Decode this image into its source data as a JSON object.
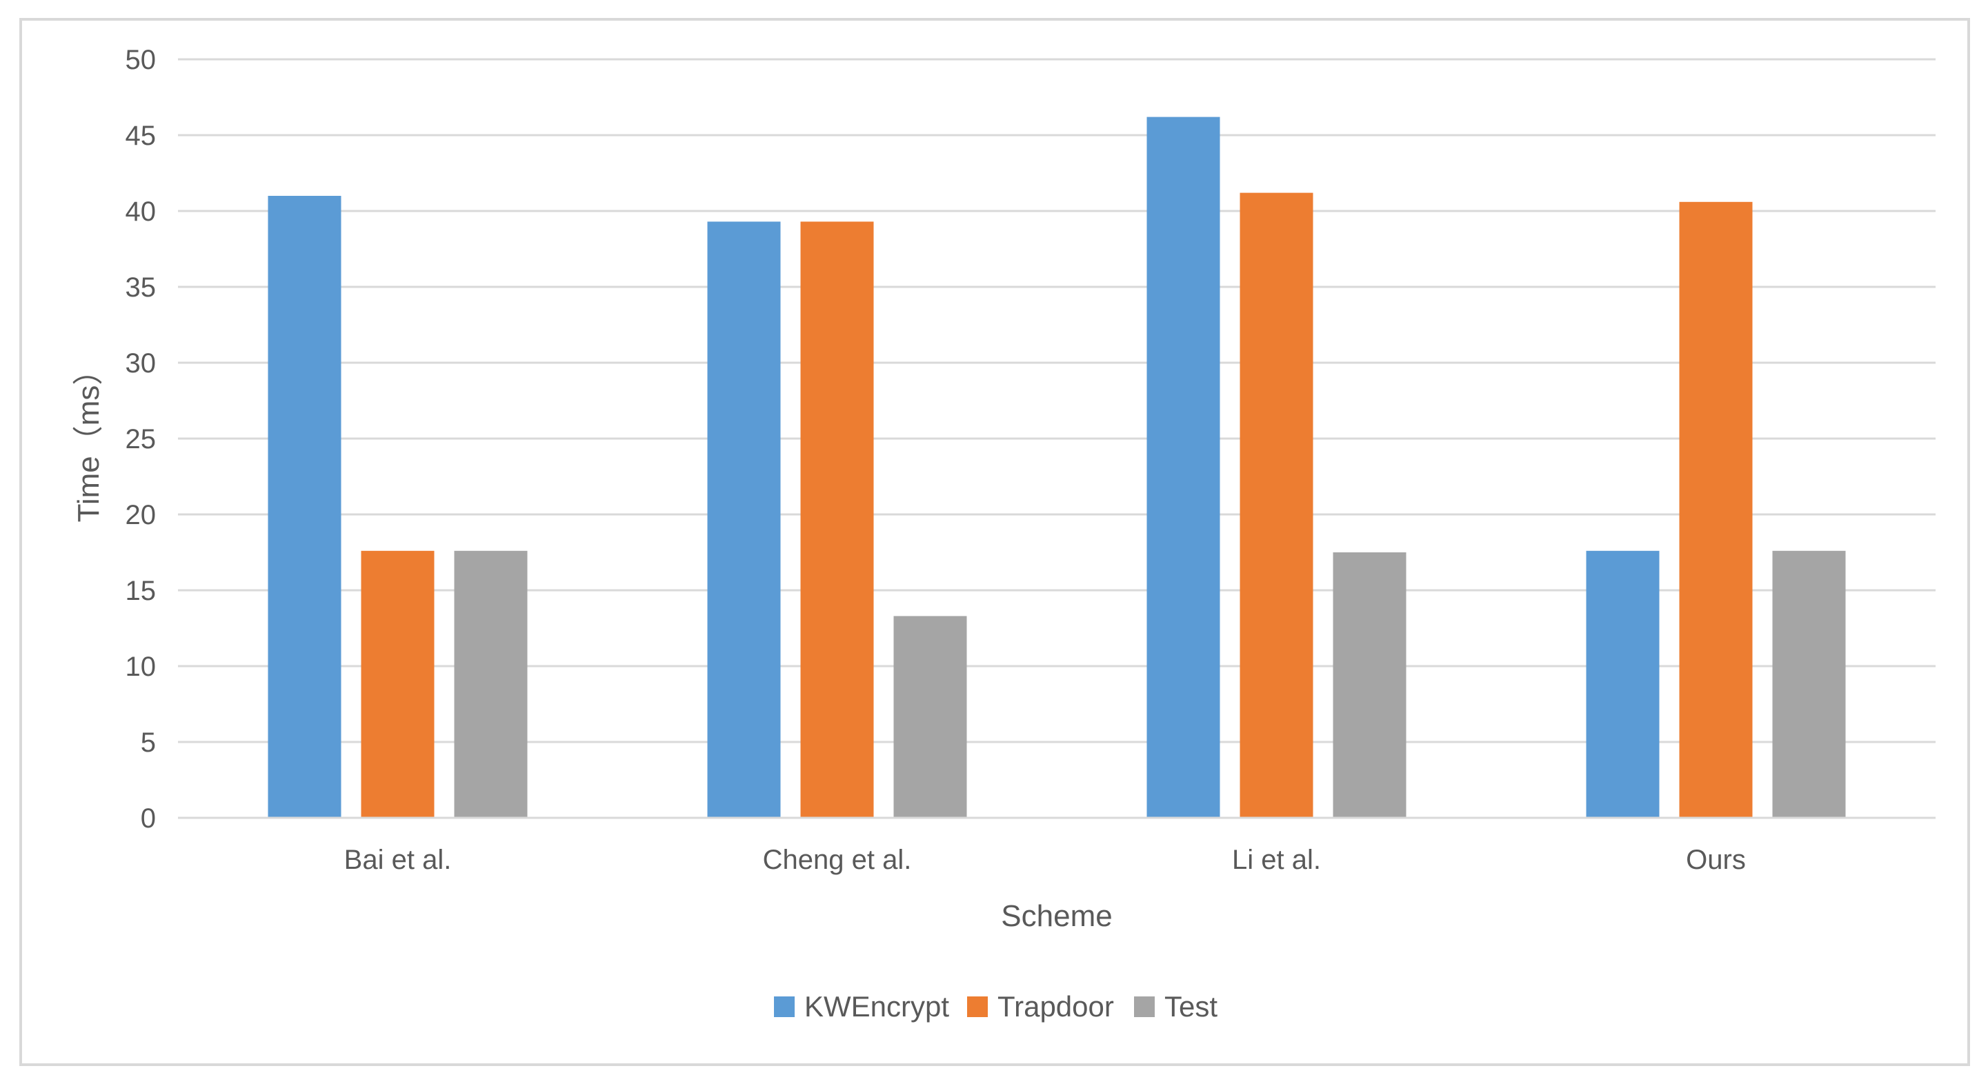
{
  "chart_data": {
    "type": "bar",
    "title": "",
    "xlabel": "Scheme",
    "ylabel": "Time（ms）",
    "categories": [
      "Bai et al.",
      "Cheng et al.",
      "Li et al.",
      "Ours"
    ],
    "ylim": [
      0,
      50
    ],
    "yticks": [
      0,
      5,
      10,
      15,
      20,
      25,
      30,
      35,
      40,
      45,
      50
    ],
    "grid": true,
    "legend_position": "bottom",
    "series": [
      {
        "name": "KWEncrypt",
        "color": "#5b9bd5",
        "values": [
          41.0,
          39.3,
          46.2,
          17.6
        ]
      },
      {
        "name": "Trapdoor",
        "color": "#ed7d31",
        "values": [
          17.6,
          39.3,
          41.2,
          40.6
        ]
      },
      {
        "name": "Test",
        "color": "#a5a5a5",
        "values": [
          17.6,
          13.3,
          17.5,
          17.6
        ]
      }
    ]
  }
}
